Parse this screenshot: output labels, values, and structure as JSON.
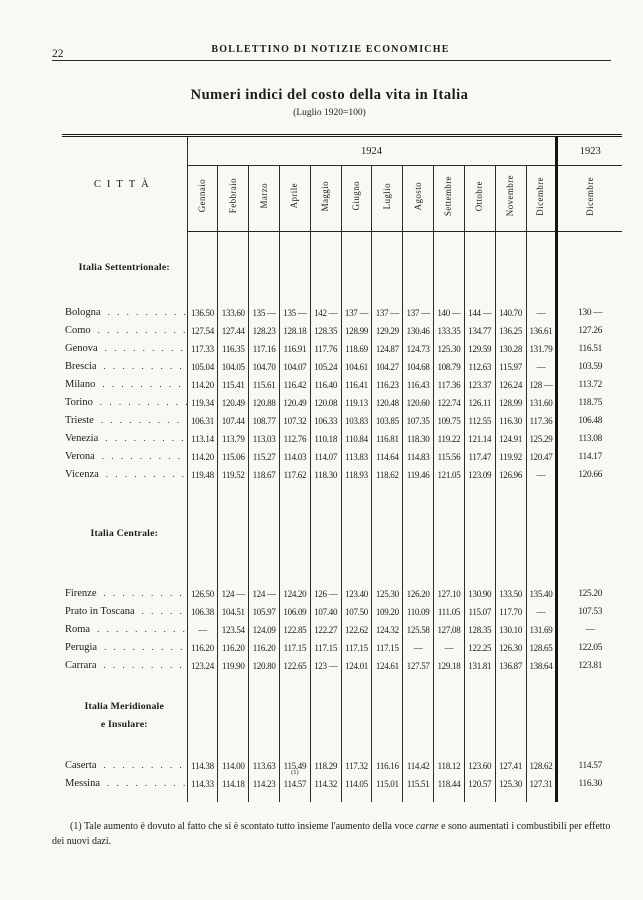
{
  "page": {
    "page_number": "22",
    "journal_title": "BOLLETTINO DI NOTIZIE ECONOMICHE",
    "title": "Numeri indici del costo della vita in Italia",
    "subtitle": "(Luglio 1920=100)"
  },
  "table": {
    "city_header": "CITTÀ",
    "year_1924": "1924",
    "year_1923": "1923",
    "months_1924": [
      "Gennaio",
      "Febbraio",
      "Marzo",
      "Aprile",
      "Maggio",
      "Giugno",
      "Luglio",
      "Agosto",
      "Settembre",
      "Ottobre",
      "Novembre",
      "Dicembre"
    ],
    "month_1923": "Dicembre",
    "leader_dots": ". . . . . . . . . . . . . . . . . . . .",
    "sections": [
      {
        "label_lines": [
          "Italia Settentrionale:"
        ],
        "rows": [
          {
            "city": "Bologna",
            "values": [
              "136.50",
              "133.60",
              "135 —",
              "135 —",
              "142 —",
              "137 —",
              "137 —",
              "137 —",
              "140 —",
              "144 —",
              "140.70",
              "—",
              "130 —"
            ]
          },
          {
            "city": "Como",
            "values": [
              "127.54",
              "127.44",
              "128.23",
              "128.18",
              "128.35",
              "128.99",
              "129.29",
              "130.46",
              "133.35",
              "134.77",
              "136.25",
              "136.61",
              "127.26"
            ]
          },
          {
            "city": "Genova",
            "values": [
              "117.33",
              "116.35",
              "117.16",
              "116.91",
              "117.76",
              "118.69",
              "124.87",
              "124.73",
              "125.30",
              "129.59",
              "130.28",
              "131.79",
              "116.51"
            ]
          },
          {
            "city": "Brescia",
            "values": [
              "105.04",
              "104.05",
              "104.70",
              "104.07",
              "105.24",
              "104.61",
              "104.27",
              "104.68",
              "108.79",
              "112.63",
              "115.97",
              "—",
              "103.59"
            ]
          },
          {
            "city": "Milano",
            "values": [
              "114.20",
              "115.41",
              "115.61",
              "116.42",
              "116.40",
              "116.41",
              "116.23",
              "116.43",
              "117.36",
              "123.37",
              "126.24",
              "128 —",
              "113.72"
            ]
          },
          {
            "city": "Torino",
            "values": [
              "119.34",
              "120.49",
              "120.88",
              "120.49",
              "120.08",
              "119.13",
              "120.48",
              "120.60",
              "122.74",
              "126.11",
              "128.99",
              "131.60",
              "118.75"
            ]
          },
          {
            "city": "Trieste",
            "values": [
              "106.31",
              "107.44",
              "108.77",
              "107.32",
              "106.33",
              "103.83",
              "103.85",
              "107.35",
              "109.75",
              "112.55",
              "116.30",
              "117.36",
              "106.48"
            ]
          },
          {
            "city": "Venezia",
            "values": [
              "113.14",
              "113.79",
              "113.03",
              "112.76",
              "110.18",
              "110.84",
              "116.81",
              "118.30",
              "119.22",
              "121.14",
              "124.91",
              "125.29",
              "113.08"
            ]
          },
          {
            "city": "Verona",
            "values": [
              "114.20",
              "115.06",
              "115.27",
              "114.03",
              "114.07",
              "113.83",
              "114.64",
              "114.83",
              "115.56",
              "117.47",
              "119.92",
              "120.47",
              "114.17"
            ]
          },
          {
            "city": "Vicenza",
            "values": [
              "119.48",
              "119.52",
              "118.67",
              "117.62",
              "118.30",
              "118.93",
              "118.62",
              "119.46",
              "121.05",
              "123.09",
              "126.96",
              "—",
              "120.66"
            ]
          }
        ]
      },
      {
        "label_lines": [
          "Italia Centrale:"
        ],
        "rows": [
          {
            "city": "Firenze",
            "values": [
              "126.50",
              "124 —",
              "124 —",
              "124.20",
              "126 —",
              "123.40",
              "125.30",
              "126.20",
              "127.10",
              "130.90",
              "133.50",
              "135.40",
              "125.20"
            ]
          },
          {
            "city": "Prato in Toscana",
            "values": [
              "106.38",
              "104.51",
              "105.97",
              "106.09",
              "107.40",
              "107.50",
              "109.20",
              "110.09",
              "111.05",
              "115.07",
              "117.70",
              "—",
              "107.53"
            ]
          },
          {
            "city": "Roma",
            "values": [
              "—",
              "123.54",
              "124.09",
              "122.85",
              "122.27",
              "122.62",
              "124.32",
              "125.58",
              "127.08",
              "128.35",
              "130.10",
              "131.69",
              "—"
            ]
          },
          {
            "city": "Perugia",
            "values": [
              "116.20",
              "116.20",
              "116.20",
              "117.15",
              "117.15",
              "117.15",
              "117.15",
              "—",
              "—",
              "122.25",
              "126.30",
              "128.65",
              "122.05"
            ]
          },
          {
            "city": "Carrara",
            "values": [
              "123.24",
              "119.90",
              "120.80",
              "122.65",
              "123 —",
              "124.01",
              "124.61",
              "127.57",
              "129.18",
              "131.81",
              "136.87",
              "138.64",
              "123.81"
            ]
          }
        ]
      },
      {
        "label_lines": [
          "Italia Meridionale",
          "e Insulare:"
        ],
        "rows": [
          {
            "city": "Caserta",
            "values": [
              "114.38",
              "114.00",
              "113.63",
              "115.49",
              "118.29",
              "117.32",
              "116.16",
              "114.42",
              "118.12",
              "123.60",
              "127.41",
              "128.62",
              "114.57"
            ],
            "footnote_ref_col": 3,
            "footnote_ref": "(1)"
          },
          {
            "city": "Messina",
            "values": [
              "114.33",
              "114.18",
              "114.23",
              "114.57",
              "114.32",
              "114.05",
              "115.01",
              "115.51",
              "118.44",
              "120.57",
              "125.30",
              "127.31",
              "116.30"
            ]
          }
        ]
      }
    ]
  },
  "footnote": {
    "part1": "(1) Tale aumento è dovuto al fatto che si è scontato tutto insieme l'aumento della voce ",
    "italic": "carne",
    "part2": " e sono aumentati i combustibili per effetto dei nuovi dazi."
  }
}
